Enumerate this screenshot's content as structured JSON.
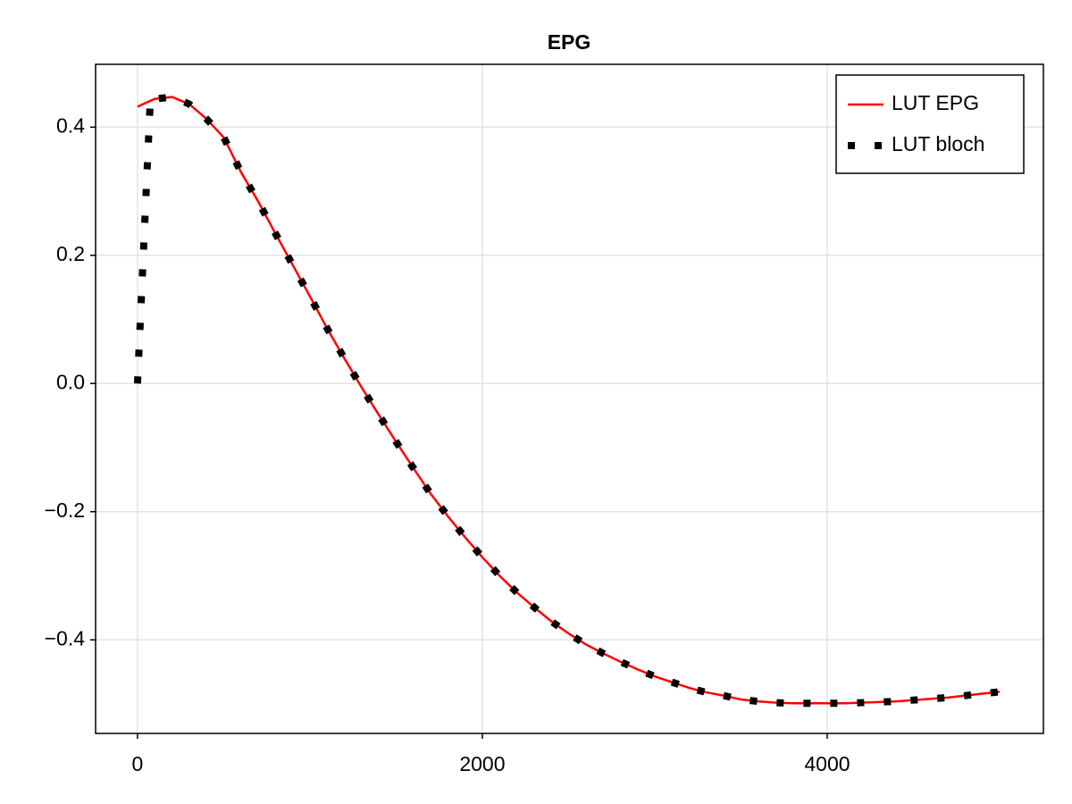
{
  "chart_data": {
    "type": "line",
    "title": "EPG",
    "series": [
      {
        "name": "LUT EPG",
        "color": "#ff0000",
        "style": "solid",
        "x": [
          0,
          100,
          200,
          300,
          400,
          500,
          600,
          700,
          800,
          900,
          1000,
          1100,
          1200,
          1300,
          1400,
          1500,
          1600,
          1700,
          1800,
          1900,
          2000,
          2100,
          2200,
          2300,
          2400,
          2500,
          2600,
          2700,
          2800,
          2900,
          3000,
          3100,
          3200,
          3300,
          3400,
          3500,
          3600,
          3700,
          3800,
          3900,
          4000,
          4100,
          4200,
          4300,
          4400,
          4500,
          4600,
          4700,
          4800,
          4900,
          5000
        ],
        "values": [
          0.432,
          0.444,
          0.447,
          0.436,
          0.413,
          0.384,
          0.33,
          0.284,
          0.234,
          0.185,
          0.136,
          0.086,
          0.039,
          -0.006,
          -0.049,
          -0.091,
          -0.132,
          -0.172,
          -0.207,
          -0.24,
          -0.271,
          -0.3,
          -0.326,
          -0.349,
          -0.371,
          -0.39,
          -0.407,
          -0.421,
          -0.434,
          -0.446,
          -0.457,
          -0.466,
          -0.475,
          -0.482,
          -0.487,
          -0.493,
          -0.496,
          -0.498,
          -0.499,
          -0.499,
          -0.499,
          -0.499,
          -0.498,
          -0.497,
          -0.496,
          -0.494,
          -0.492,
          -0.49,
          -0.487,
          -0.484,
          -0.481
        ]
      },
      {
        "name": "LUT bloch",
        "color": "#000000",
        "style": "dotted",
        "x": [
          0,
          75,
          100,
          200,
          300,
          400,
          500,
          600,
          700,
          800,
          900,
          1000,
          1100,
          1200,
          1300,
          1400,
          1500,
          1600,
          1700,
          1800,
          1900,
          2000,
          2100,
          2200,
          2300,
          2400,
          2500,
          2600,
          2700,
          2800,
          2900,
          3000,
          3100,
          3200,
          3300,
          3400,
          3500,
          3600,
          3700,
          3800,
          3900,
          4000,
          4100,
          4200,
          4300,
          4400,
          4500,
          4600,
          4700,
          4800,
          4900,
          5000
        ],
        "values": [
          0,
          0.446,
          0.444,
          0.447,
          0.436,
          0.413,
          0.384,
          0.33,
          0.284,
          0.234,
          0.185,
          0.136,
          0.086,
          0.039,
          -0.006,
          -0.049,
          -0.091,
          -0.132,
          -0.172,
          -0.207,
          -0.24,
          -0.271,
          -0.3,
          -0.326,
          -0.349,
          -0.371,
          -0.39,
          -0.407,
          -0.421,
          -0.434,
          -0.446,
          -0.457,
          -0.466,
          -0.475,
          -0.482,
          -0.487,
          -0.493,
          -0.496,
          -0.498,
          -0.499,
          -0.499,
          -0.499,
          -0.499,
          -0.498,
          -0.497,
          -0.496,
          -0.494,
          -0.492,
          -0.49,
          -0.487,
          -0.484,
          -0.481
        ]
      }
    ],
    "xlim": [
      -243,
      5254
    ],
    "xticks": [
      0,
      2000,
      4000
    ],
    "ylim": [
      -0.546,
      0.498
    ],
    "yticks": [
      {
        "value": -0.4,
        "label": "−0.4"
      },
      {
        "value": -0.2,
        "label": "−0.2"
      },
      {
        "value": 0,
        "label": "0.0"
      },
      0.2,
      0.4
    ],
    "grid": true,
    "legend": "top-right"
  }
}
